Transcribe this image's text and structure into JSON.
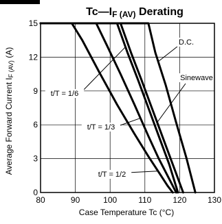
{
  "chart_data": {
    "type": "line",
    "title_main": "Tc—I",
    "title_sub": "F (AV)",
    "title_tail": " Derating",
    "xlabel": "Case Temperature  Tc (°C)",
    "ylabel_main": "Average Forward Current  I",
    "ylabel_sub": "F (AV)",
    "ylabel_tail": " (A)",
    "xlim": [
      80,
      130
    ],
    "ylim": [
      0,
      15
    ],
    "xticks": [
      80,
      90,
      100,
      110,
      120,
      130
    ],
    "yticks": [
      0,
      3,
      6,
      9,
      12,
      15
    ],
    "grid": true,
    "series": [
      {
        "name": "t/T = 1/2",
        "x": [
          80,
          89,
          92,
          97,
          102,
          107,
          111,
          114,
          116.5,
          118
        ],
        "y": [
          15,
          15,
          13.5,
          10.6,
          7.8,
          5.2,
          3.2,
          1.8,
          0.6,
          0
        ]
      },
      {
        "name": "t/T = 1/3",
        "x": [
          80,
          96,
          99,
          103,
          107,
          111,
          114,
          117,
          119
        ],
        "y": [
          15,
          15,
          13.1,
          10.5,
          7.8,
          5.0,
          3.0,
          1.2,
          0
        ]
      },
      {
        "name": "t/T = 1/6",
        "x": [
          80,
          102,
          105,
          108,
          111,
          114,
          117,
          119.5
        ],
        "y": [
          15,
          15,
          12.4,
          10.0,
          7.5,
          5.0,
          2.5,
          0
        ]
      },
      {
        "name": "Sinewave",
        "x": [
          80,
          103,
          106,
          109,
          112,
          115,
          118,
          121
        ],
        "y": [
          15,
          15,
          12.4,
          10.0,
          7.5,
          5.0,
          2.5,
          0
        ]
      },
      {
        "name": "D.C.",
        "x": [
          80,
          111,
          113,
          116,
          119,
          122,
          124.5
        ],
        "y": [
          15,
          15,
          12.4,
          9.5,
          6.2,
          3.0,
          0
        ]
      }
    ],
    "annotations": [
      {
        "text": "D.C.",
        "series": "D.C.",
        "pos": "right"
      },
      {
        "text": "Sinewave",
        "series": "Sinewave",
        "pos": "right"
      },
      {
        "text": "t/T = 1/6",
        "series": "t/T = 1/6",
        "pos": "left"
      },
      {
        "text": "t/T = 1/3",
        "series": "t/T = 1/3",
        "pos": "left"
      },
      {
        "text": "t/T = 1/2",
        "series": "t/T = 1/2",
        "pos": "left"
      }
    ]
  }
}
